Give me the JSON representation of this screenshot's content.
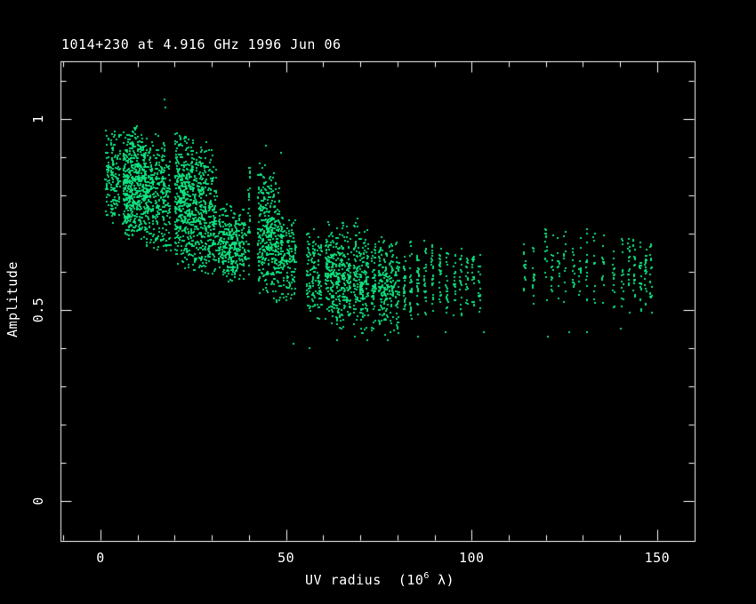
{
  "colors": {
    "background": "#000000",
    "axis": "#ffffff",
    "text": "#ffffff",
    "points": "#0ee37f"
  },
  "chart_data": {
    "type": "scatter",
    "title": "1014+230 at 4.916 GHz 1996 Jun 06",
    "ylabel": "Amplitude",
    "xlabel_prefix": "UV radius  (10",
    "xlabel_sup": "6",
    "xlabel_suffix": " λ)",
    "xlim": [
      -10.8,
      160.1
    ],
    "ylim": [
      -0.105,
      1.15
    ],
    "xticks_major": [
      0,
      50,
      100,
      150
    ],
    "xtick_labels": [
      "0",
      "50",
      "100",
      "150"
    ],
    "xtick_minor_step": 10,
    "yticks_major": [
      0,
      0.5,
      1
    ],
    "ytick_labels": [
      "0",
      "0.5",
      "1"
    ],
    "ytick_minor_step": 0.1,
    "grid": false,
    "legend": null,
    "point_color": "#0ee37f",
    "stripes_columns": [
      "uv_radius_1e6_lambda",
      "amp_min",
      "amp_max",
      "n_points"
    ],
    "stripes": [
      [
        1.9,
        0.73,
        0.97,
        40
      ],
      [
        3.4,
        0.71,
        0.98,
        75
      ],
      [
        4.8,
        0.73,
        0.96,
        40
      ],
      [
        6.7,
        0.69,
        0.98,
        110
      ],
      [
        7.9,
        0.68,
        0.97,
        110
      ],
      [
        9.1,
        0.69,
        0.98,
        110
      ],
      [
        10.3,
        0.68,
        0.96,
        100
      ],
      [
        11.5,
        0.67,
        0.97,
        100
      ],
      [
        12.7,
        0.66,
        0.96,
        85
      ],
      [
        13.9,
        0.66,
        0.95,
        60
      ],
      [
        15.3,
        0.65,
        0.96,
        70
      ],
      [
        16.8,
        0.65,
        0.97,
        80
      ],
      [
        18.2,
        0.63,
        0.94,
        50
      ],
      [
        20.6,
        0.61,
        0.98,
        95
      ],
      [
        21.8,
        0.61,
        0.97,
        100
      ],
      [
        23.0,
        0.6,
        0.97,
        100
      ],
      [
        24.2,
        0.6,
        0.96,
        95
      ],
      [
        25.4,
        0.59,
        0.95,
        90
      ],
      [
        26.8,
        0.59,
        0.94,
        85
      ],
      [
        28.0,
        0.59,
        0.94,
        80
      ],
      [
        29.5,
        0.58,
        0.93,
        70
      ],
      [
        30.7,
        0.58,
        0.91,
        60
      ],
      [
        32.3,
        0.58,
        0.78,
        50
      ],
      [
        33.5,
        0.58,
        0.77,
        55
      ],
      [
        34.7,
        0.57,
        0.79,
        60
      ],
      [
        35.9,
        0.57,
        0.78,
        60
      ],
      [
        37.1,
        0.57,
        0.77,
        55
      ],
      [
        38.6,
        0.57,
        0.77,
        45
      ],
      [
        40.0,
        0.57,
        0.89,
        35
      ],
      [
        42.9,
        0.54,
        0.89,
        65
      ],
      [
        44.1,
        0.54,
        0.88,
        75
      ],
      [
        45.3,
        0.53,
        0.87,
        80
      ],
      [
        46.5,
        0.52,
        0.86,
        80
      ],
      [
        47.7,
        0.52,
        0.84,
        70
      ],
      [
        49.1,
        0.52,
        0.77,
        55
      ],
      [
        50.6,
        0.51,
        0.76,
        50
      ],
      [
        52.0,
        0.51,
        0.76,
        50
      ],
      [
        56.1,
        0.48,
        0.72,
        45
      ],
      [
        57.5,
        0.48,
        0.72,
        45
      ],
      [
        59.0,
        0.47,
        0.71,
        45
      ],
      [
        61.1,
        0.47,
        0.73,
        70
      ],
      [
        62.5,
        0.46,
        0.72,
        75
      ],
      [
        64.0,
        0.45,
        0.72,
        75
      ],
      [
        65.4,
        0.45,
        0.73,
        70
      ],
      [
        66.9,
        0.45,
        0.72,
        65
      ],
      [
        68.8,
        0.44,
        0.77,
        70
      ],
      [
        70.2,
        0.43,
        0.72,
        65
      ],
      [
        71.6,
        0.43,
        0.71,
        60
      ],
      [
        73.6,
        0.43,
        0.7,
        55
      ],
      [
        75.5,
        0.43,
        0.7,
        60
      ],
      [
        76.9,
        0.43,
        0.69,
        60
      ],
      [
        78.4,
        0.43,
        0.69,
        55
      ],
      [
        80.0,
        0.43,
        0.68,
        45
      ],
      [
        81.9,
        0.47,
        0.68,
        30
      ],
      [
        83.6,
        0.47,
        0.69,
        30
      ],
      [
        85.5,
        0.48,
        0.69,
        28
      ],
      [
        87.5,
        0.48,
        0.7,
        24
      ],
      [
        89.4,
        0.48,
        0.7,
        24
      ],
      [
        91.5,
        0.48,
        0.7,
        24
      ],
      [
        93.4,
        0.48,
        0.69,
        22
      ],
      [
        95.4,
        0.48,
        0.69,
        20
      ],
      [
        97.1,
        0.48,
        0.68,
        20
      ],
      [
        98.7,
        0.48,
        0.68,
        18
      ],
      [
        100.4,
        0.48,
        0.68,
        17
      ],
      [
        102.1,
        0.48,
        0.67,
        16
      ],
      [
        114.3,
        0.52,
        0.68,
        14
      ],
      [
        116.7,
        0.51,
        0.69,
        16
      ],
      [
        120.0,
        0.51,
        0.74,
        16
      ],
      [
        121.7,
        0.51,
        0.7,
        14
      ],
      [
        123.4,
        0.51,
        0.7,
        14
      ],
      [
        125.1,
        0.5,
        0.72,
        12
      ],
      [
        127.5,
        0.5,
        0.71,
        14
      ],
      [
        129.2,
        0.5,
        0.7,
        12
      ],
      [
        131.1,
        0.5,
        0.74,
        14
      ],
      [
        133.0,
        0.5,
        0.72,
        12
      ],
      [
        135.4,
        0.5,
        0.71,
        12
      ],
      [
        138.3,
        0.5,
        0.7,
        16
      ],
      [
        140.7,
        0.5,
        0.7,
        16
      ],
      [
        142.3,
        0.49,
        0.7,
        18
      ],
      [
        143.8,
        0.49,
        0.7,
        20
      ],
      [
        145.5,
        0.49,
        0.7,
        22
      ],
      [
        146.9,
        0.49,
        0.69,
        20
      ],
      [
        148.3,
        0.48,
        0.69,
        18
      ]
    ],
    "outliers": [
      [
        17.3,
        1.05
      ],
      [
        17.6,
        1.03
      ],
      [
        44.6,
        0.93
      ],
      [
        48.6,
        0.91
      ],
      [
        51.9,
        0.41
      ],
      [
        56.3,
        0.4
      ],
      [
        63.8,
        0.42
      ],
      [
        68.6,
        0.43
      ],
      [
        71.9,
        0.42
      ],
      [
        77.5,
        0.42
      ],
      [
        80.3,
        0.48
      ],
      [
        85.6,
        0.43
      ],
      [
        93.1,
        0.44
      ],
      [
        103.2,
        0.44
      ],
      [
        120.5,
        0.43
      ],
      [
        126.3,
        0.44
      ],
      [
        131.0,
        0.44
      ],
      [
        140.2,
        0.45
      ]
    ]
  }
}
